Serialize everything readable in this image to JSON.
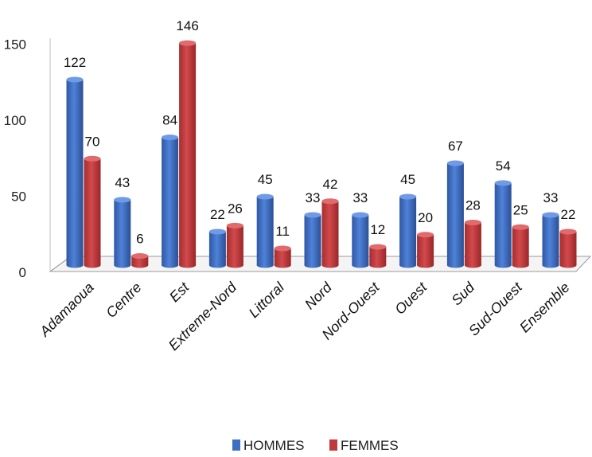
{
  "chart_data": {
    "type": "bar",
    "categories": [
      "Adamaoua",
      "Centre",
      "Est",
      "Extreme-Nord",
      "Littoral",
      "Nord",
      "Nord-Ouest",
      "Ouest",
      "Sud",
      "Sud-Ouest",
      "Ensemble"
    ],
    "series": [
      {
        "name": "HOMMES",
        "color": "#3f6fc2",
        "values": [
          122,
          43,
          84,
          22,
          45,
          33,
          33,
          45,
          67,
          54,
          33
        ]
      },
      {
        "name": "FEMMES",
        "color": "#c0393b",
        "values": [
          70,
          6,
          146,
          26,
          11,
          42,
          12,
          20,
          28,
          25,
          22
        ]
      }
    ],
    "yticks": [
      0,
      50,
      100,
      150
    ],
    "ylim": [
      0,
      150
    ],
    "grid": false,
    "legend_position": "bottom",
    "bar_style": "3d-cylinder"
  }
}
